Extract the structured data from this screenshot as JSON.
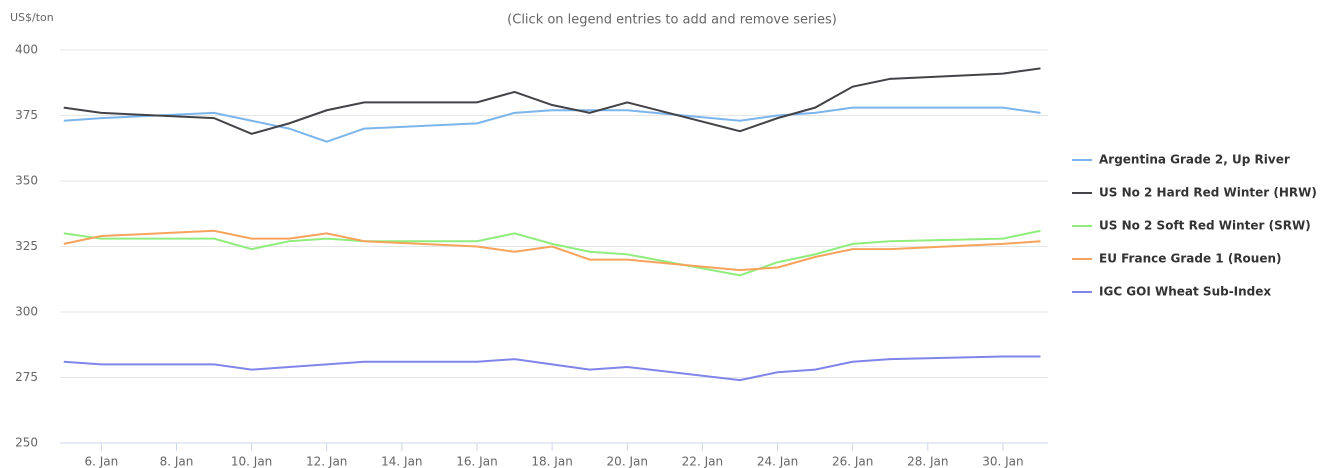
{
  "chart_data": {
    "type": "line",
    "subtitle": "(Click on legend entries to add and remove series)",
    "y_label": "US$/ton",
    "x": [
      5,
      6,
      9,
      10,
      11,
      12,
      13,
      16,
      17,
      18,
      19,
      20,
      23,
      24,
      25,
      26,
      27,
      30,
      31
    ],
    "xlim": [
      4.9,
      31.2
    ],
    "xticks": [
      {
        "value": 6,
        "label": "6. Jan"
      },
      {
        "value": 8,
        "label": "8. Jan"
      },
      {
        "value": 10,
        "label": "10. Jan"
      },
      {
        "value": 12,
        "label": "12. Jan"
      },
      {
        "value": 14,
        "label": "14. Jan"
      },
      {
        "value": 16,
        "label": "16. Jan"
      },
      {
        "value": 18,
        "label": "18. Jan"
      },
      {
        "value": 20,
        "label": "20. Jan"
      },
      {
        "value": 22,
        "label": "22. Jan"
      },
      {
        "value": 24,
        "label": "24. Jan"
      },
      {
        "value": 26,
        "label": "26. Jan"
      },
      {
        "value": 28,
        "label": "28. Jan"
      },
      {
        "value": 30,
        "label": "30. Jan"
      }
    ],
    "ylim": [
      250,
      400
    ],
    "yticks": [
      250,
      275,
      300,
      325,
      350,
      375,
      400
    ],
    "grid": true,
    "legend": "right",
    "series": [
      {
        "name": "Argentina Grade 2, Up River",
        "color": "#7cb5ec",
        "values": [
          373,
          374,
          376,
          373,
          370,
          365,
          370,
          372,
          376,
          377,
          377,
          377,
          373,
          375,
          376,
          378,
          378,
          378,
          376
        ]
      },
      {
        "name": "US No 2 Hard Red Winter (HRW)",
        "color": "#434348",
        "values": [
          378,
          376,
          374,
          368,
          372,
          377,
          380,
          380,
          384,
          379,
          376,
          380,
          369,
          374,
          378,
          386,
          389,
          391,
          393
        ]
      },
      {
        "name": "US No 2 Soft Red Winter (SRW)",
        "color": "#90ed7d",
        "values": [
          330,
          328,
          328,
          324,
          327,
          328,
          327,
          327,
          330,
          326,
          323,
          322,
          314,
          319,
          322,
          326,
          327,
          328,
          331
        ]
      },
      {
        "name": "EU France Grade 1 (Rouen)",
        "color": "#f7a35c",
        "values": [
          326,
          329,
          331,
          328,
          328,
          330,
          327,
          325,
          323,
          325,
          320,
          320,
          316,
          317,
          321,
          324,
          324,
          326,
          327
        ]
      },
      {
        "name": "IGC GOI Wheat Sub-Index",
        "color": "#8085e9",
        "values": [
          281,
          280,
          280,
          278,
          279,
          280,
          281,
          281,
          282,
          280,
          278,
          279,
          274,
          277,
          278,
          281,
          282,
          283,
          283
        ]
      }
    ]
  }
}
